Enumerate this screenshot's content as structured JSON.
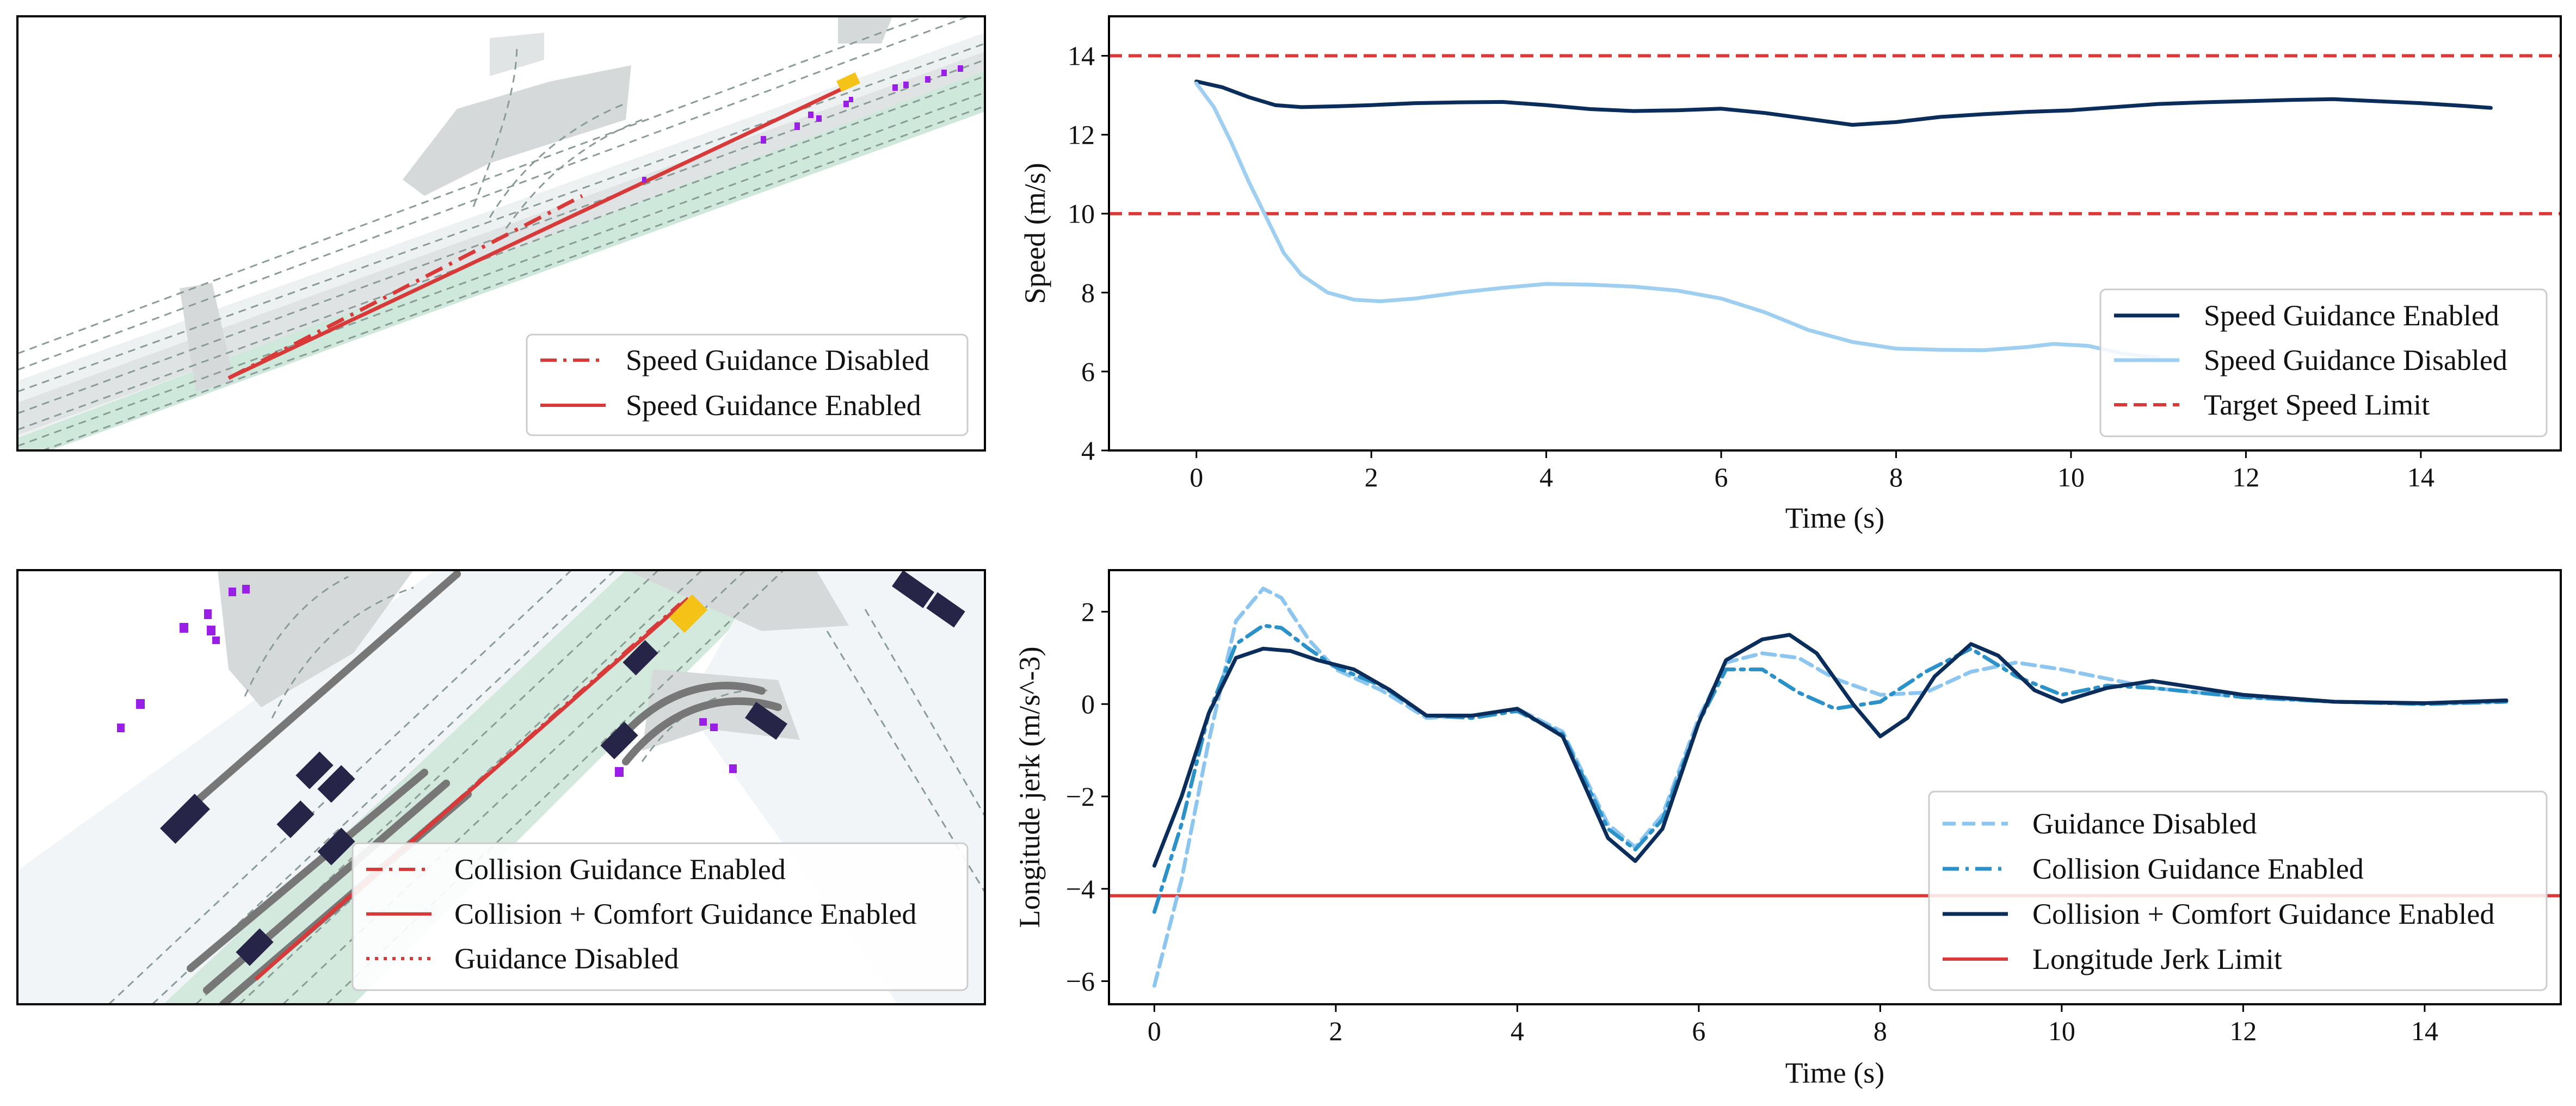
{
  "colors": {
    "dark_navy": "#0b2d5b",
    "light_blue": "#9ecff0",
    "mid_blue": "#2b92c9",
    "dashed_blue": "#8cc6f0",
    "red": "#d83a3a",
    "road_green": "#cfe8dc",
    "road_gray": "#d5d8d8",
    "vehicle_dark": "#262548",
    "ego_yellow": "#f5c218",
    "pedestrian_purple": "#9a1fe6"
  },
  "scene_top": {
    "legend": [
      "Speed Guidance Disabled",
      "Speed Guidance Enabled"
    ]
  },
  "scene_bottom": {
    "legend": [
      "Collision Guidance Enabled",
      "Collision + Comfort Guidance Enabled",
      "Guidance Disabled"
    ]
  },
  "chart_data": [
    {
      "type": "line",
      "xlabel": "Time (s)",
      "ylabel": "Speed (m/s)",
      "xlim": [
        -1,
        15.6
      ],
      "ylim": [
        4,
        15
      ],
      "xticks": [
        0,
        2,
        4,
        6,
        8,
        10,
        12,
        14
      ],
      "yticks": [
        4,
        6,
        8,
        10,
        12,
        14
      ],
      "legend_position": "lower-right",
      "series": [
        {
          "name": "Speed Guidance Enabled",
          "style": "solid",
          "color": "#0b2d5b",
          "x": [
            0,
            0.3,
            0.6,
            0.9,
            1.2,
            1.6,
            2,
            2.5,
            3,
            3.5,
            4,
            4.5,
            5,
            5.5,
            6,
            6.5,
            7,
            7.5,
            8,
            8.5,
            9,
            9.5,
            10,
            10.5,
            11,
            11.5,
            12,
            12.5,
            13,
            13.5,
            14,
            14.5,
            14.8
          ],
          "y": [
            13.35,
            13.2,
            12.95,
            12.75,
            12.7,
            12.72,
            12.75,
            12.8,
            12.82,
            12.83,
            12.75,
            12.65,
            12.6,
            12.62,
            12.66,
            12.55,
            12.4,
            12.25,
            12.32,
            12.45,
            12.52,
            12.58,
            12.62,
            12.7,
            12.78,
            12.82,
            12.85,
            12.88,
            12.9,
            12.85,
            12.8,
            12.73,
            12.68
          ]
        },
        {
          "name": "Speed Guidance Disabled",
          "style": "solid",
          "color": "#9ecff0",
          "x": [
            0,
            0.2,
            0.4,
            0.6,
            0.8,
            1,
            1.2,
            1.5,
            1.8,
            2.1,
            2.5,
            3,
            3.5,
            4,
            4.5,
            5,
            5.5,
            6,
            6.5,
            7,
            7.5,
            8,
            8.5,
            9,
            9.5,
            9.8,
            10.2,
            10.6,
            11
          ],
          "y": [
            13.3,
            12.7,
            11.8,
            10.8,
            9.9,
            9.0,
            8.45,
            8.0,
            7.82,
            7.78,
            7.85,
            8.0,
            8.12,
            8.22,
            8.2,
            8.15,
            8.05,
            7.85,
            7.5,
            7.05,
            6.75,
            6.58,
            6.55,
            6.54,
            6.62,
            6.7,
            6.65,
            6.45,
            6.35
          ]
        }
      ],
      "reference_lines": [
        {
          "name": "Target Speed Limit",
          "y": 14,
          "style": "dashed",
          "color": "#d83a3a"
        },
        {
          "name": "Target Speed Limit",
          "y": 10,
          "style": "dashed",
          "color": "#d83a3a"
        }
      ],
      "legend": [
        "Speed Guidance Enabled",
        "Speed Guidance Disabled",
        "Target Speed Limit"
      ]
    },
    {
      "type": "line",
      "xlabel": "Time (s)",
      "ylabel": "Longitude jerk (m/s^-3)",
      "xlim": [
        -0.5,
        15.5
      ],
      "ylim": [
        -6.5,
        2.9
      ],
      "xticks": [
        0,
        2,
        4,
        6,
        8,
        10,
        12,
        14
      ],
      "yticks": [
        -6,
        -4,
        -2,
        0,
        2
      ],
      "legend_position": "lower-right",
      "series": [
        {
          "name": "Guidance Disabled",
          "style": "dashed",
          "color": "#8cc6f0",
          "x": [
            0,
            0.3,
            0.6,
            0.9,
            1.2,
            1.4,
            1.7,
            2,
            2.5,
            3,
            3.5,
            4,
            4.5,
            5,
            5.3,
            5.6,
            6,
            6.3,
            6.7,
            7.1,
            7.5,
            8,
            8.5,
            9,
            9.5,
            10,
            10.5,
            11,
            11.5,
            12,
            13,
            14,
            14.9
          ],
          "y": [
            -6.1,
            -3.8,
            -0.8,
            1.8,
            2.5,
            2.3,
            1.4,
            0.75,
            0.3,
            -0.3,
            -0.25,
            -0.1,
            -0.6,
            -2.6,
            -3.1,
            -2.4,
            -0.3,
            0.9,
            1.1,
            1.0,
            0.55,
            0.2,
            0.25,
            0.7,
            0.9,
            0.75,
            0.55,
            0.35,
            0.25,
            0.15,
            0.05,
            0.0,
            0.05
          ]
        },
        {
          "name": "Collision Guidance Enabled",
          "style": "dashdot",
          "color": "#2b92c9",
          "x": [
            0,
            0.3,
            0.6,
            0.9,
            1.2,
            1.4,
            1.7,
            2,
            2.5,
            3,
            3.5,
            4,
            4.5,
            5,
            5.3,
            5.6,
            6,
            6.3,
            6.7,
            7.1,
            7.5,
            8,
            8.5,
            9,
            9.5,
            10,
            10.5,
            11,
            11.5,
            12,
            13,
            14,
            14.9
          ],
          "y": [
            -4.5,
            -2.6,
            -0.2,
            1.3,
            1.7,
            1.65,
            1.2,
            0.8,
            0.4,
            -0.25,
            -0.3,
            -0.15,
            -0.65,
            -2.7,
            -3.15,
            -2.5,
            -0.4,
            0.75,
            0.75,
            0.25,
            -0.1,
            0.05,
            0.7,
            1.2,
            0.6,
            0.2,
            0.4,
            0.35,
            0.25,
            0.15,
            0.05,
            0.0,
            0.05
          ]
        },
        {
          "name": "Collision + Comfort Guidance Enabled",
          "style": "solid",
          "color": "#0b2d5b",
          "x": [
            0,
            0.3,
            0.6,
            0.9,
            1.2,
            1.5,
            1.8,
            2.2,
            2.6,
            3,
            3.5,
            4,
            4.5,
            5,
            5.3,
            5.6,
            6,
            6.3,
            6.7,
            7,
            7.3,
            7.7,
            8,
            8.3,
            8.6,
            9,
            9.3,
            9.7,
            10,
            10.5,
            11,
            12,
            13,
            14,
            14.9
          ],
          "y": [
            -3.5,
            -2.0,
            -0.2,
            1.0,
            1.2,
            1.15,
            0.95,
            0.75,
            0.3,
            -0.25,
            -0.25,
            -0.1,
            -0.7,
            -2.9,
            -3.4,
            -2.7,
            -0.4,
            0.95,
            1.4,
            1.5,
            1.1,
            0.0,
            -0.7,
            -0.3,
            0.6,
            1.3,
            1.05,
            0.3,
            0.05,
            0.35,
            0.5,
            0.2,
            0.05,
            0.02,
            0.08
          ]
        }
      ],
      "reference_lines": [
        {
          "name": "Longitude Jerk Limit",
          "y": -4.15,
          "style": "solid",
          "color": "#d83a3a"
        }
      ],
      "legend": [
        "Guidance Disabled",
        "Collision Guidance Enabled",
        "Collision + Comfort Guidance Enabled",
        "Longitude Jerk Limit"
      ]
    }
  ]
}
